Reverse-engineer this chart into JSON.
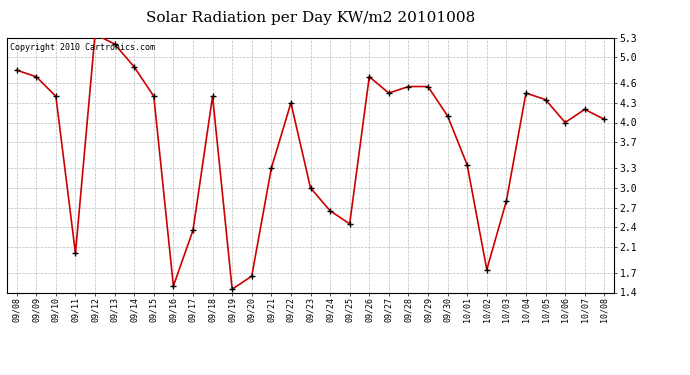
{
  "title": "Solar Radiation per Day KW/m2 20101008",
  "copyright": "Copyright 2010 Cartronics.com",
  "labels": [
    "09/08",
    "09/09",
    "09/10",
    "09/11",
    "09/12",
    "09/13",
    "09/14",
    "09/15",
    "09/16",
    "09/17",
    "09/18",
    "09/19",
    "09/20",
    "09/21",
    "09/22",
    "09/23",
    "09/24",
    "09/25",
    "09/26",
    "09/27",
    "09/28",
    "09/29",
    "09/30",
    "10/01",
    "10/02",
    "10/03",
    "10/04",
    "10/05",
    "10/06",
    "10/07",
    "10/08"
  ],
  "values": [
    4.8,
    4.7,
    4.4,
    2.0,
    5.35,
    5.2,
    4.85,
    4.4,
    1.5,
    2.35,
    4.4,
    1.45,
    1.65,
    3.3,
    4.3,
    3.0,
    2.65,
    2.45,
    4.7,
    4.45,
    4.55,
    4.55,
    4.1,
    3.35,
    1.75,
    2.8,
    4.45,
    4.35,
    4.0,
    4.2,
    4.05
  ],
  "line_color": "#cc0000",
  "marker_color": "#000000",
  "bg_color": "#ffffff",
  "grid_color": "#bbbbbb",
  "ylim_min": 1.4,
  "ylim_max": 5.3,
  "yticks": [
    1.4,
    1.7,
    2.1,
    2.4,
    2.7,
    3.0,
    3.3,
    3.7,
    4.0,
    4.3,
    4.6,
    5.0,
    5.3
  ]
}
